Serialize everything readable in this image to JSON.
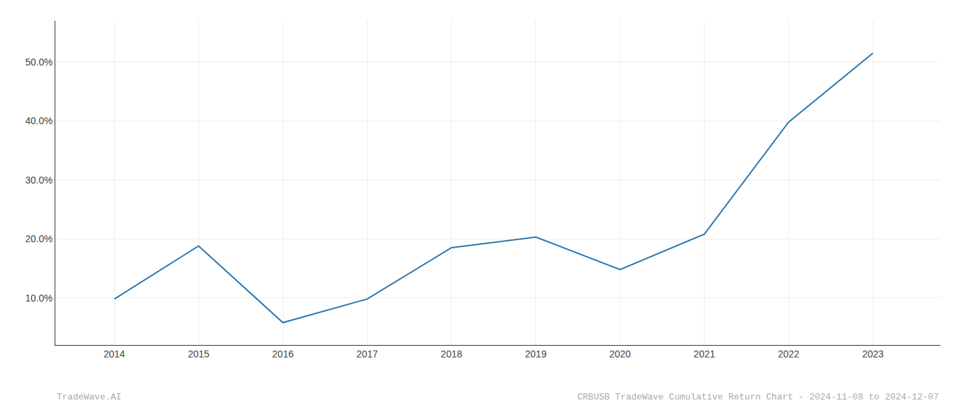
{
  "chart_data": {
    "type": "line",
    "x": [
      2014,
      2015,
      2016,
      2017,
      2018,
      2019,
      2020,
      2021,
      2022,
      2023
    ],
    "values": [
      9.8,
      18.8,
      5.8,
      9.8,
      18.5,
      20.3,
      14.8,
      20.8,
      39.8,
      51.5
    ],
    "color": "#2976ae",
    "xlim": [
      2013.3,
      2023.8
    ],
    "xticks": [
      2014,
      2015,
      2016,
      2017,
      2018,
      2019,
      2020,
      2021,
      2022,
      2023
    ],
    "ylim": [
      2,
      57
    ],
    "yticks": [
      {
        "value": 10.0,
        "label": "10.0%"
      },
      {
        "value": 20.0,
        "label": "20.0%"
      },
      {
        "value": 30.0,
        "label": "30.0%"
      },
      {
        "value": 40.0,
        "label": "40.0%"
      },
      {
        "value": 50.0,
        "label": "50.0%"
      }
    ],
    "grid": true,
    "annotations": [
      "TradeWave.AI",
      "CRBUSB TradeWave Cumulative Return Chart - 2024-11-08 to 2024-12-07"
    ]
  }
}
